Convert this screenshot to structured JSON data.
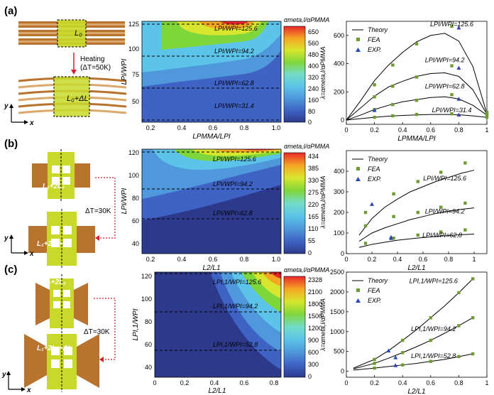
{
  "figure": {
    "panels": [
      {
        "label": "(a)",
        "schematic": {
          "length_label": "L₀",
          "heating_label": "Heating",
          "delta_label": "(ΔT=50K)",
          "length_after_label": "L₀+ΔL",
          "axis_x": "x",
          "axis_y": "y"
        },
        "contour": {
          "colorbar_title": "αmeta,l/αPMMA",
          "colorbar_ticks": [
            "650",
            "560",
            "480",
            "400",
            "320",
            "240",
            "160",
            "80",
            "0"
          ],
          "xticks": [
            "0.2",
            "0.4",
            "0.6",
            "0.8",
            "1.0"
          ],
          "yticks": [
            "125",
            "100",
            "75",
            "50"
          ],
          "xlabel": "LPMMA/LPI",
          "ylabel": "LPI/WPI",
          "line_labels": [
            "LPI/WPI=125.6",
            "LPI/WPI=94.2",
            "LPI/WPI=62.8",
            "LPI/WPI=31.4"
          ]
        }
      },
      {
        "label": "(b)",
        "schematic": {
          "length_label": "L₁+2L₂",
          "delta_label": "ΔT=30K",
          "length_after_label": "L₁+2L₂+ΔL",
          "axis_x": "x",
          "axis_y": "y"
        },
        "contour": {
          "colorbar_title": "αmeta,l/αPMMA",
          "colorbar_ticks": [
            "434",
            "385",
            "330",
            "275",
            "220",
            "165",
            "110",
            "55",
            "0"
          ],
          "xticks": [
            "0.2",
            "0.4",
            "0.6",
            "0.8",
            "1.0"
          ],
          "yticks": [
            "120",
            "100",
            "80",
            "60",
            "40"
          ],
          "xlabel": "L2/L1",
          "ylabel": "LPI/WPI",
          "line_labels": [
            "LPI/WPI=125.6",
            "LPI/WPI=94.2",
            "LPI/WPI=62.8"
          ]
        }
      },
      {
        "label": "(c)",
        "schematic": {
          "length_label": "L₁+2L₂",
          "delta_label": "ΔT=30K",
          "length_after_label": "L₁+2L₂+ΔL",
          "axis_x": "x",
          "axis_y": "y"
        },
        "contour": {
          "colorbar_title": "αmeta,l/αPMMA",
          "colorbar_ticks": [
            "2328",
            "2100",
            "1800",
            "1500",
            "1200",
            "900",
            "600",
            "300",
            "0"
          ],
          "xticks": [
            "0",
            "0.2",
            "0.4",
            "0.6",
            "0.8"
          ],
          "yticks": [
            "120",
            "100",
            "80",
            "60",
            "40"
          ],
          "xlabel": "L2/L1",
          "ylabel": "LPI,1/WPI",
          "line_labels": [
            "LPI,1/WPI=125.6",
            "LPI,1/WPI=94.2",
            "LPI,1/WPI=52.8"
          ]
        }
      }
    ],
    "legend": {
      "theory": "Theory",
      "fea": "FEA",
      "exp": "EXP."
    },
    "colors": {
      "theory": "#000000",
      "fea": "#6e9a32",
      "exp": "#2b46b0"
    }
  },
  "chart_data": [
    {
      "type": "scatter",
      "panel": "(a)",
      "title": "",
      "xlabel": "LPMMA/LPI",
      "ylabel": "λ=αmeta,l/αPMMA",
      "xlim": [
        0,
        1.0
      ],
      "ylim": [
        -30,
        700
      ],
      "xticks": [
        0,
        0.2,
        0.4,
        0.6,
        0.8,
        1.0
      ],
      "yticks": [
        0,
        200,
        400,
        600
      ],
      "series": [
        {
          "name": "LPI/WPI=125.6",
          "label_pos": [
            0.75,
            665
          ],
          "theory": {
            "x": [
              0,
              0.1,
              0.2,
              0.3,
              0.4,
              0.5,
              0.6,
              0.7,
              0.8,
              0.9,
              1.0
            ],
            "y": [
              0,
              135,
              280,
              390,
              480,
              555,
              600,
              615,
              560,
              380,
              45
            ]
          },
          "fea": {
            "x": [
              0.2,
              0.33,
              0.5,
              0.75,
              1.0
            ],
            "y": [
              250,
              390,
              540,
              665,
              55
            ]
          },
          "exp": {
            "x": [
              0.8
            ],
            "y": [
              655
            ]
          }
        },
        {
          "name": "LPI/WPI=94.2",
          "label_pos": [
            0.7,
            410
          ],
          "theory": {
            "x": [
              0,
              0.1,
              0.2,
              0.3,
              0.4,
              0.5,
              0.6,
              0.7,
              0.8,
              0.9,
              1.0
            ],
            "y": [
              0,
              85,
              170,
              235,
              275,
              310,
              330,
              335,
              310,
              215,
              40
            ]
          },
          "fea": {
            "x": [
              0.2,
              0.33,
              0.5,
              0.75,
              1.0
            ],
            "y": [
              165,
              240,
              305,
              385,
              45
            ]
          },
          "exp": {
            "x": [
              0.8
            ],
            "y": [
              370
            ]
          }
        },
        {
          "name": "LPI/WPI=62.8",
          "label_pos": [
            0.7,
            225
          ],
          "theory": {
            "x": [
              0,
              0.1,
              0.2,
              0.3,
              0.4,
              0.5,
              0.6,
              0.7,
              0.8,
              0.9,
              1.0
            ],
            "y": [
              0,
              35,
              75,
              105,
              130,
              145,
              160,
              165,
              150,
              105,
              35
            ]
          },
          "fea": {
            "x": [
              0.2,
              0.33,
              0.5,
              0.75,
              1.0
            ],
            "y": [
              75,
              110,
              140,
              180,
              35
            ]
          },
          "exp": {
            "x": [
              0.2,
              0.8
            ],
            "y": [
              70,
              150
            ]
          }
        },
        {
          "name": "LPI/WPI=31.4",
          "label_pos": [
            0.75,
            55
          ],
          "theory": {
            "x": [
              0,
              0.1,
              0.2,
              0.3,
              0.4,
              0.5,
              0.6,
              0.7,
              0.8,
              0.9,
              1.0
            ],
            "y": [
              0,
              10,
              20,
              28,
              33,
              37,
              40,
              40,
              38,
              30,
              20
            ]
          },
          "fea": {
            "x": [
              0.2,
              0.33,
              0.5,
              0.75,
              1.0
            ],
            "y": [
              20,
              30,
              40,
              45,
              20
            ]
          },
          "exp": {
            "x": [
              0.8
            ],
            "y": [
              38
            ]
          }
        }
      ]
    },
    {
      "type": "scatter",
      "panel": "(b)",
      "title": "",
      "xlabel": "L2/L1",
      "ylabel": "λ=αmeta,l/αPMMA",
      "xlim": [
        0,
        1.1
      ],
      "ylim": [
        0,
        500
      ],
      "xticks": [
        0,
        0.2,
        0.4,
        0.6,
        0.8,
        1.0
      ],
      "yticks": [
        0,
        100,
        200,
        300,
        400
      ],
      "series": [
        {
          "name": "LPI/WPI=125.6",
          "label_pos": [
            0.77,
            355
          ],
          "theory": {
            "x": [
              0.1,
              0.2,
              0.3,
              0.4,
              0.5,
              0.6,
              0.7,
              0.8,
              0.9,
              1.0
            ],
            "y": [
              90,
              170,
              225,
              265,
              300,
              325,
              350,
              370,
              390,
              405
            ]
          },
          "fea": {
            "x": [
              0.15,
              0.37,
              0.56,
              0.74,
              0.93
            ],
            "y": [
              200,
              290,
              350,
              395,
              440
            ]
          },
          "exp": {
            "x": [
              0.2
            ],
            "y": [
              240
            ]
          }
        },
        {
          "name": "LPI/WPI=94.2",
          "label_pos": [
            0.77,
            195
          ],
          "theory": {
            "x": [
              0.1,
              0.2,
              0.3,
              0.4,
              0.5,
              0.6,
              0.7,
              0.8,
              0.9,
              1.0
            ],
            "y": [
              60,
              100,
              125,
              145,
              165,
              180,
              195,
              205,
              215,
              222
            ]
          },
          "fea": {
            "x": [
              0.15,
              0.37,
              0.56,
              0.74,
              0.93
            ],
            "y": [
              135,
              180,
              200,
              225,
              245
            ]
          },
          "exp": {
            "x": [
              0.35
            ],
            "y": [
              80
            ]
          }
        },
        {
          "name": "LPI/WPI=62.8",
          "label_pos": [
            0.75,
            80
          ],
          "theory": {
            "x": [
              0.1,
              0.2,
              0.3,
              0.4,
              0.5,
              0.6,
              0.7,
              0.8,
              0.9,
              1.0
            ],
            "y": [
              30,
              45,
              55,
              65,
              72,
              78,
              83,
              88,
              92,
              95
            ]
          },
          "fea": {
            "x": [
              0.15,
              0.37,
              0.56,
              0.74,
              0.93
            ],
            "y": [
              50,
              75,
              90,
              105,
              115
            ]
          },
          "exp": {
            "x": [
              0.35
            ],
            "y": [
              75
            ]
          }
        }
      ]
    },
    {
      "type": "scatter",
      "panel": "(c)",
      "title": "",
      "xlabel": "L2/L1",
      "ylabel": "λ=αmeta,l/αPMMA",
      "xlim": [
        0,
        1.0
      ],
      "ylim": [
        -150,
        2500
      ],
      "xticks": [
        0,
        0.2,
        0.4,
        0.6,
        0.8,
        1.0
      ],
      "yticks": [
        0,
        500,
        1000,
        1500,
        2000,
        2500
      ],
      "series": [
        {
          "name": "LPI,1/WPI=125.6",
          "label_pos": [
            0.62,
            2220
          ],
          "theory": {
            "x": [
              0.05,
              0.2,
              0.3,
              0.4,
              0.5,
              0.6,
              0.7,
              0.8,
              0.9
            ],
            "y": [
              80,
              300,
              520,
              780,
              1050,
              1350,
              1650,
              1980,
              2330
            ]
          },
          "fea": {
            "x": [
              0.2,
              0.4,
              0.6,
              0.8,
              0.9
            ],
            "y": [
              300,
              780,
              1350,
              1980,
              2330
            ]
          },
          "exp": {
            "x": [
              0.3
            ],
            "y": [
              520
            ]
          }
        },
        {
          "name": "LPI,1/WPI=94.2",
          "label_pos": [
            0.62,
            1010
          ],
          "theory": {
            "x": [
              0.05,
              0.2,
              0.3,
              0.4,
              0.5,
              0.6,
              0.7,
              0.8,
              0.9
            ],
            "y": [
              60,
              200,
              330,
              470,
              620,
              780,
              960,
              1150,
              1350
            ]
          },
          "fea": {
            "x": [
              0.2,
              0.4,
              0.6,
              0.8,
              0.9
            ],
            "y": [
              200,
              470,
              780,
              1150,
              1350
            ]
          },
          "exp": {
            "x": [
              0.35
            ],
            "y": [
              350
            ]
          }
        },
        {
          "name": "LPI,1/WPI=52.8",
          "label_pos": [
            0.62,
            330
          ],
          "theory": {
            "x": [
              0.05,
              0.2,
              0.3,
              0.4,
              0.5,
              0.6,
              0.7,
              0.8,
              0.9
            ],
            "y": [
              30,
              80,
              120,
              160,
              200,
              250,
              300,
              370,
              440
            ]
          },
          "fea": {
            "x": [
              0.2,
              0.4,
              0.6,
              0.8,
              0.9
            ],
            "y": [
              80,
              160,
              250,
              370,
              440
            ]
          },
          "exp": {
            "x": [
              0.35
            ],
            "y": [
              150
            ]
          }
        }
      ]
    }
  ]
}
